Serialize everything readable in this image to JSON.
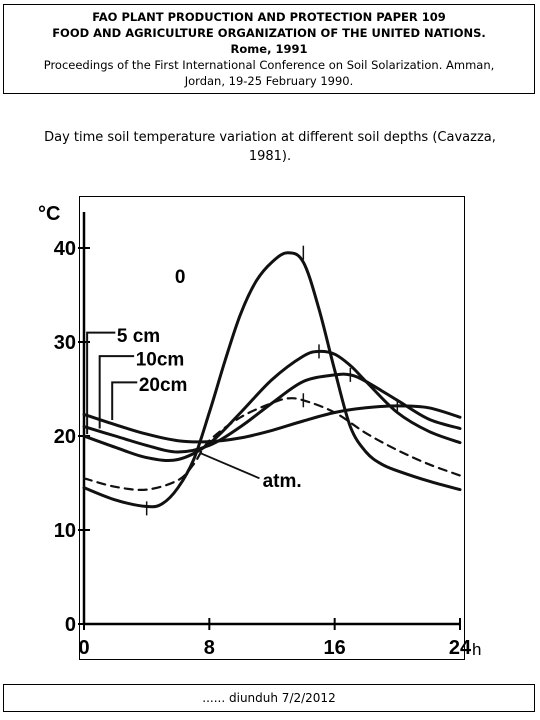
{
  "header": {
    "line1": "FAO PLANT PRODUCTION AND PROTECTION PAPER 109",
    "line2": "FOOD AND AGRICULTURE ORGANIZATION OF THE UNITED NATIONS.",
    "line3": "Rome, 1991",
    "line4": "Proceedings of the First International Conference on Soil Solarization. Amman,",
    "line5": "Jordan, 19-25 February 1990."
  },
  "caption": {
    "line1": "Day time soil temperature variation at different soil depths (Cavazza,",
    "line2": "1981)."
  },
  "footer": {
    "text": "...... diunduh 7/2/2012"
  },
  "chart_data": {
    "type": "line",
    "title": "",
    "ylabel": "°C",
    "xlabel": "h",
    "xlim": [
      0,
      24
    ],
    "ylim": [
      0,
      40
    ],
    "xticks": [
      0,
      8,
      16,
      24
    ],
    "xtick_labels": [
      "0",
      "8",
      "16",
      "24"
    ],
    "yticks": [
      0,
      10,
      20,
      30,
      40
    ],
    "ytick_labels": [
      "0",
      "10",
      "20",
      "30",
      "40"
    ],
    "grid": false,
    "series": [
      {
        "name": "0",
        "style": "solid",
        "x": [
          0,
          2,
          4,
          5,
          6,
          7,
          8,
          9,
          10,
          11,
          12,
          13,
          14,
          15,
          16,
          17,
          18,
          19,
          20,
          22,
          24
        ],
        "y": [
          14.5,
          13.2,
          12.5,
          12.8,
          14.5,
          17.5,
          22.5,
          28,
          33,
          36.5,
          38.5,
          39.5,
          38.5,
          33.5,
          27,
          21,
          18.3,
          17,
          16.3,
          15.2,
          14.3
        ]
      },
      {
        "name": "5 cm",
        "style": "solid",
        "x": [
          0,
          2,
          4,
          6,
          8,
          10,
          12,
          14,
          15,
          16,
          17,
          18,
          20,
          22,
          24
        ],
        "y": [
          20,
          18.8,
          17.7,
          17.5,
          19.2,
          22.5,
          26,
          28.5,
          29,
          28.7,
          27.5,
          25.8,
          22.5,
          20.5,
          19.3
        ]
      },
      {
        "name": "10cm",
        "style": "solid",
        "x": [
          0,
          2,
          4,
          6,
          8,
          10,
          12,
          14,
          16,
          17,
          18,
          20,
          22,
          24
        ],
        "y": [
          21,
          20,
          19,
          18.3,
          19,
          21,
          23.5,
          25.8,
          26.5,
          26.5,
          25.8,
          23.8,
          21.8,
          20.8
        ]
      },
      {
        "name": "20cm",
        "style": "solid",
        "x": [
          0,
          2,
          4,
          6,
          8,
          10,
          12,
          14,
          16,
          18,
          20,
          22,
          24
        ],
        "y": [
          22.3,
          21.2,
          20.2,
          19.5,
          19.4,
          19.8,
          20.6,
          21.6,
          22.5,
          23,
          23.2,
          23,
          22
        ]
      },
      {
        "name": "atm.",
        "style": "dashed",
        "x": [
          0,
          2,
          4,
          6,
          7,
          8,
          10,
          12,
          13,
          14,
          16,
          18,
          20,
          22,
          24
        ],
        "y": [
          15.5,
          14.6,
          14.3,
          15.3,
          17,
          19.5,
          22,
          23.5,
          24,
          23.8,
          22.5,
          20.3,
          18.5,
          17,
          15.8
        ]
      }
    ],
    "labels": [
      "0",
      "5 cm",
      "10cm",
      "20cm",
      "atm."
    ],
    "colors": {
      "line": "#111111",
      "axis": "#000000"
    }
  }
}
